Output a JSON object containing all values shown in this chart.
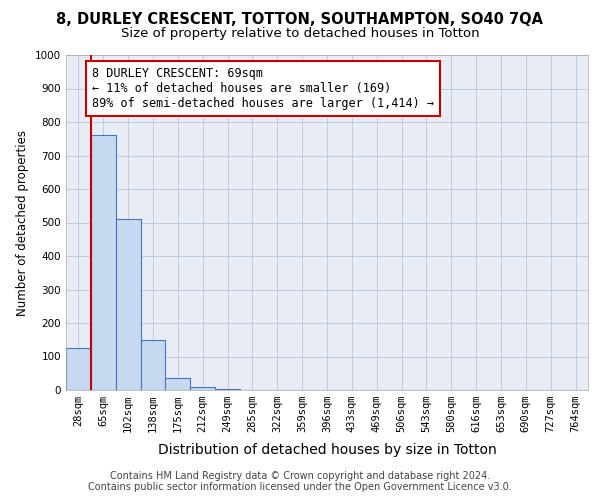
{
  "title_line1": "8, DURLEY CRESCENT, TOTTON, SOUTHAMPTON, SO40 7QA",
  "title_line2": "Size of property relative to detached houses in Totton",
  "xlabel": "Distribution of detached houses by size in Totton",
  "ylabel": "Number of detached properties",
  "categories": [
    "28sqm",
    "65sqm",
    "102sqm",
    "138sqm",
    "175sqm",
    "212sqm",
    "249sqm",
    "285sqm",
    "322sqm",
    "359sqm",
    "396sqm",
    "433sqm",
    "469sqm",
    "506sqm",
    "543sqm",
    "580sqm",
    "616sqm",
    "653sqm",
    "690sqm",
    "727sqm",
    "764sqm"
  ],
  "values": [
    125,
    760,
    510,
    148,
    35,
    10,
    2,
    0,
    0,
    0,
    0,
    0,
    0,
    0,
    0,
    0,
    0,
    0,
    0,
    0,
    0
  ],
  "bar_color": "#c6d9f0",
  "bar_edge_color": "#4472c4",
  "vline_x": 0.5,
  "vline_color": "#c00000",
  "annotation_text": "8 DURLEY CRESCENT: 69sqm\n← 11% of detached houses are smaller (169)\n89% of semi-detached houses are larger (1,414) →",
  "annotation_box_color": "#ffffff",
  "annotation_box_edgecolor": "#c00000",
  "ylim": [
    0,
    1000
  ],
  "yticks": [
    0,
    100,
    200,
    300,
    400,
    500,
    600,
    700,
    800,
    900,
    1000
  ],
  "background_color": "#ffffff",
  "plot_bg_color": "#e8edf5",
  "grid_color": "#b8c4d8",
  "footer_line1": "Contains HM Land Registry data © Crown copyright and database right 2024.",
  "footer_line2": "Contains public sector information licensed under the Open Government Licence v3.0.",
  "title_fontsize": 10.5,
  "subtitle_fontsize": 9.5,
  "ylabel_fontsize": 8.5,
  "xlabel_fontsize": 10,
  "tick_fontsize": 7.5,
  "annotation_fontsize": 8.5,
  "footer_fontsize": 7
}
